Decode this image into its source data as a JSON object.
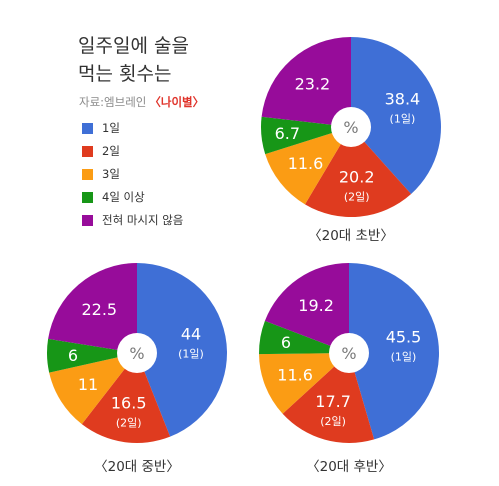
{
  "title_line1": "일주일에 술을",
  "title_line2": "먹는 횟수는",
  "source_text": "자료:엠브레인",
  "source_tag": "〈나이별〉",
  "center_glyph": "%",
  "colors": {
    "once": "#3f6fd6",
    "twice": "#df3b1f",
    "thrice": "#fb9c14",
    "four_plus": "#179617",
    "never": "#970c9a"
  },
  "legend": [
    {
      "label": "1일",
      "color": "#3f6fd6"
    },
    {
      "label": "2일",
      "color": "#df3b1f"
    },
    {
      "label": "3일",
      "color": "#fb9c14"
    },
    {
      "label": "4일 이상",
      "color": "#179617"
    },
    {
      "label": "전혀 마시지 않음",
      "color": "#970c9a"
    }
  ],
  "chart_data": [
    {
      "type": "pie",
      "title": "〈20대 초반〉",
      "categories": [
        "1일",
        "2일",
        "3일",
        "4일 이상",
        "전혀 마시지 않음"
      ],
      "value_labels": [
        "38.4",
        "20.2",
        "11.6",
        "6.7",
        "23.2"
      ],
      "values": [
        38.4,
        20.2,
        11.6,
        6.7,
        23.2
      ],
      "sub_labels": [
        "(1일)",
        "(2일)",
        "",
        "",
        ""
      ]
    },
    {
      "type": "pie",
      "title": "〈20대 중반〉",
      "categories": [
        "1일",
        "2일",
        "3일",
        "4일 이상",
        "전혀 마시지 않음"
      ],
      "value_labels": [
        "44",
        "16.5",
        "11",
        "6",
        "22.5"
      ],
      "values": [
        44,
        16.5,
        11,
        6,
        22.5
      ],
      "sub_labels": [
        "(1일)",
        "(2일)",
        "",
        "",
        ""
      ]
    },
    {
      "type": "pie",
      "title": "〈20대 후반〉",
      "categories": [
        "1일",
        "2일",
        "3일",
        "4일 이상",
        "전혀 마시지 않음"
      ],
      "value_labels": [
        "45.5",
        "17.7",
        "11.6",
        "6",
        "19.2"
      ],
      "values": [
        45.5,
        17.7,
        11.6,
        6,
        19.2
      ],
      "sub_labels": [
        "(1일)",
        "(2일)",
        "",
        "",
        ""
      ]
    }
  ]
}
